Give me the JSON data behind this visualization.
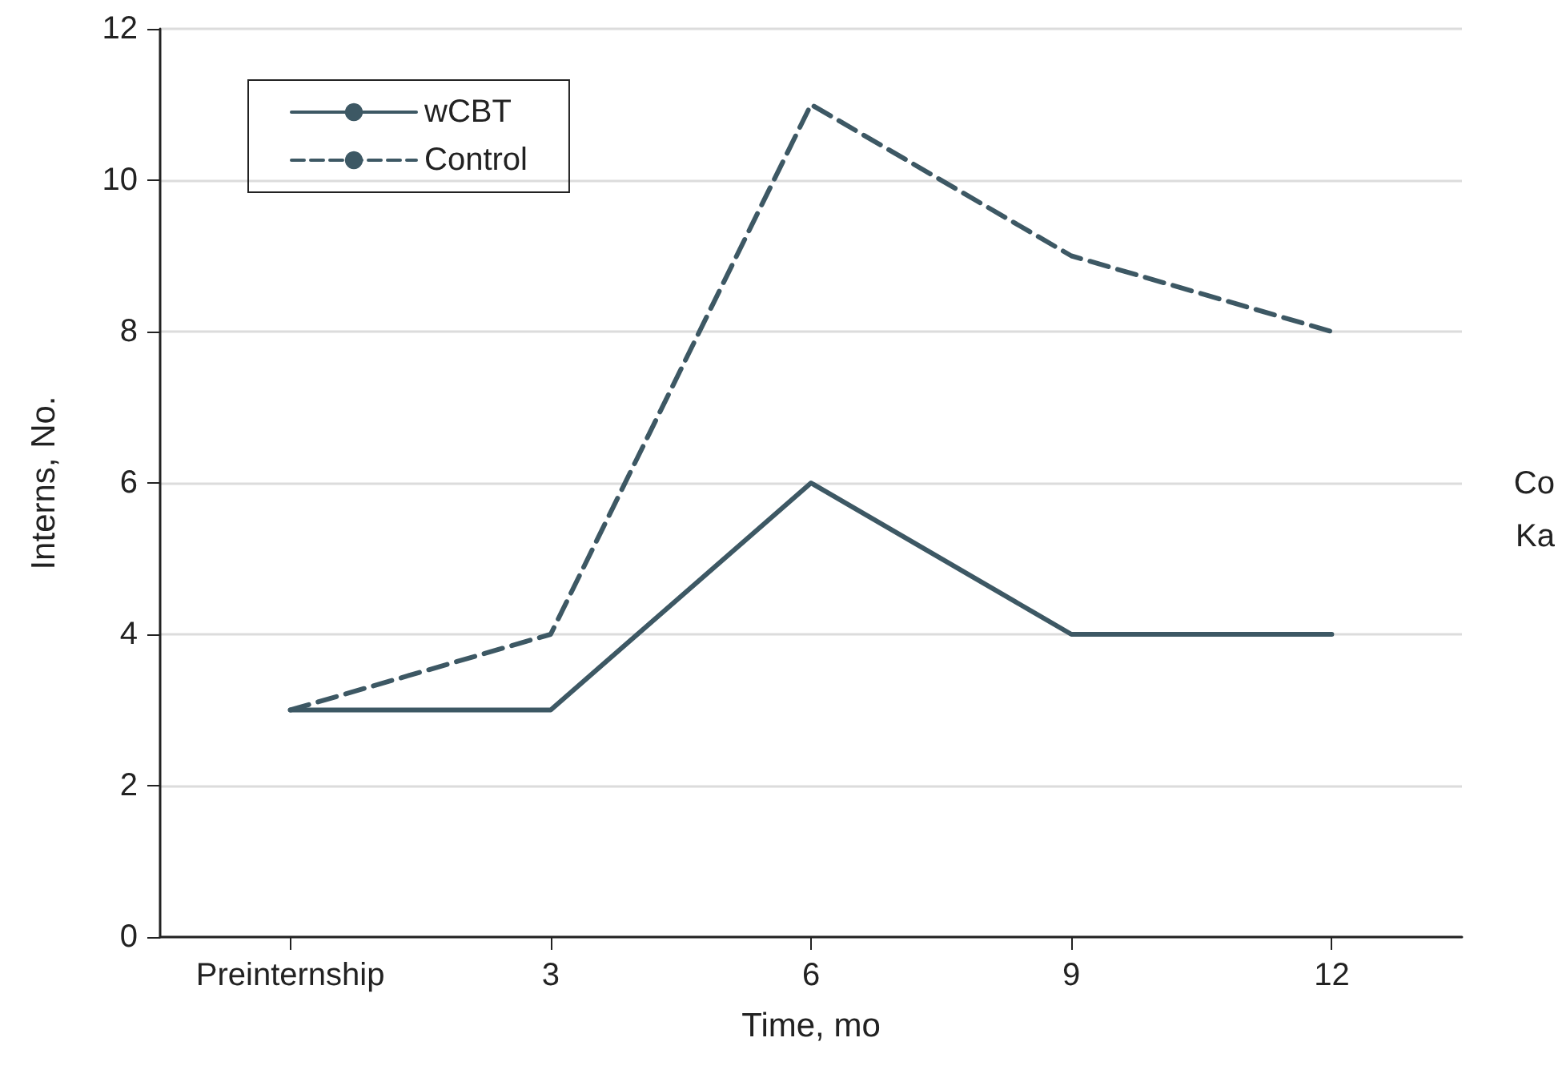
{
  "chart_data": {
    "type": "line",
    "xlabel": "Time, mo",
    "ylabel": "Interns, No.",
    "categories": [
      "Preinternship",
      "3",
      "6",
      "9",
      "12"
    ],
    "series": [
      {
        "name": "wCBT",
        "color": "#3d5864",
        "values": [
          3,
          3,
          6,
          4,
          4
        ],
        "line_style": "solid"
      },
      {
        "name": "Control",
        "color": "#3d5864",
        "values": [
          3,
          4,
          11,
          9,
          8
        ],
        "line_style": "dashed"
      }
    ],
    "ylim": [
      0,
      12
    ],
    "yticks": [
      0,
      2,
      4,
      6,
      8,
      10,
      12
    ],
    "grid": "y",
    "legend": "top left",
    "marker": "none",
    "annotations": [
      "Co",
      "Ka"
    ]
  }
}
